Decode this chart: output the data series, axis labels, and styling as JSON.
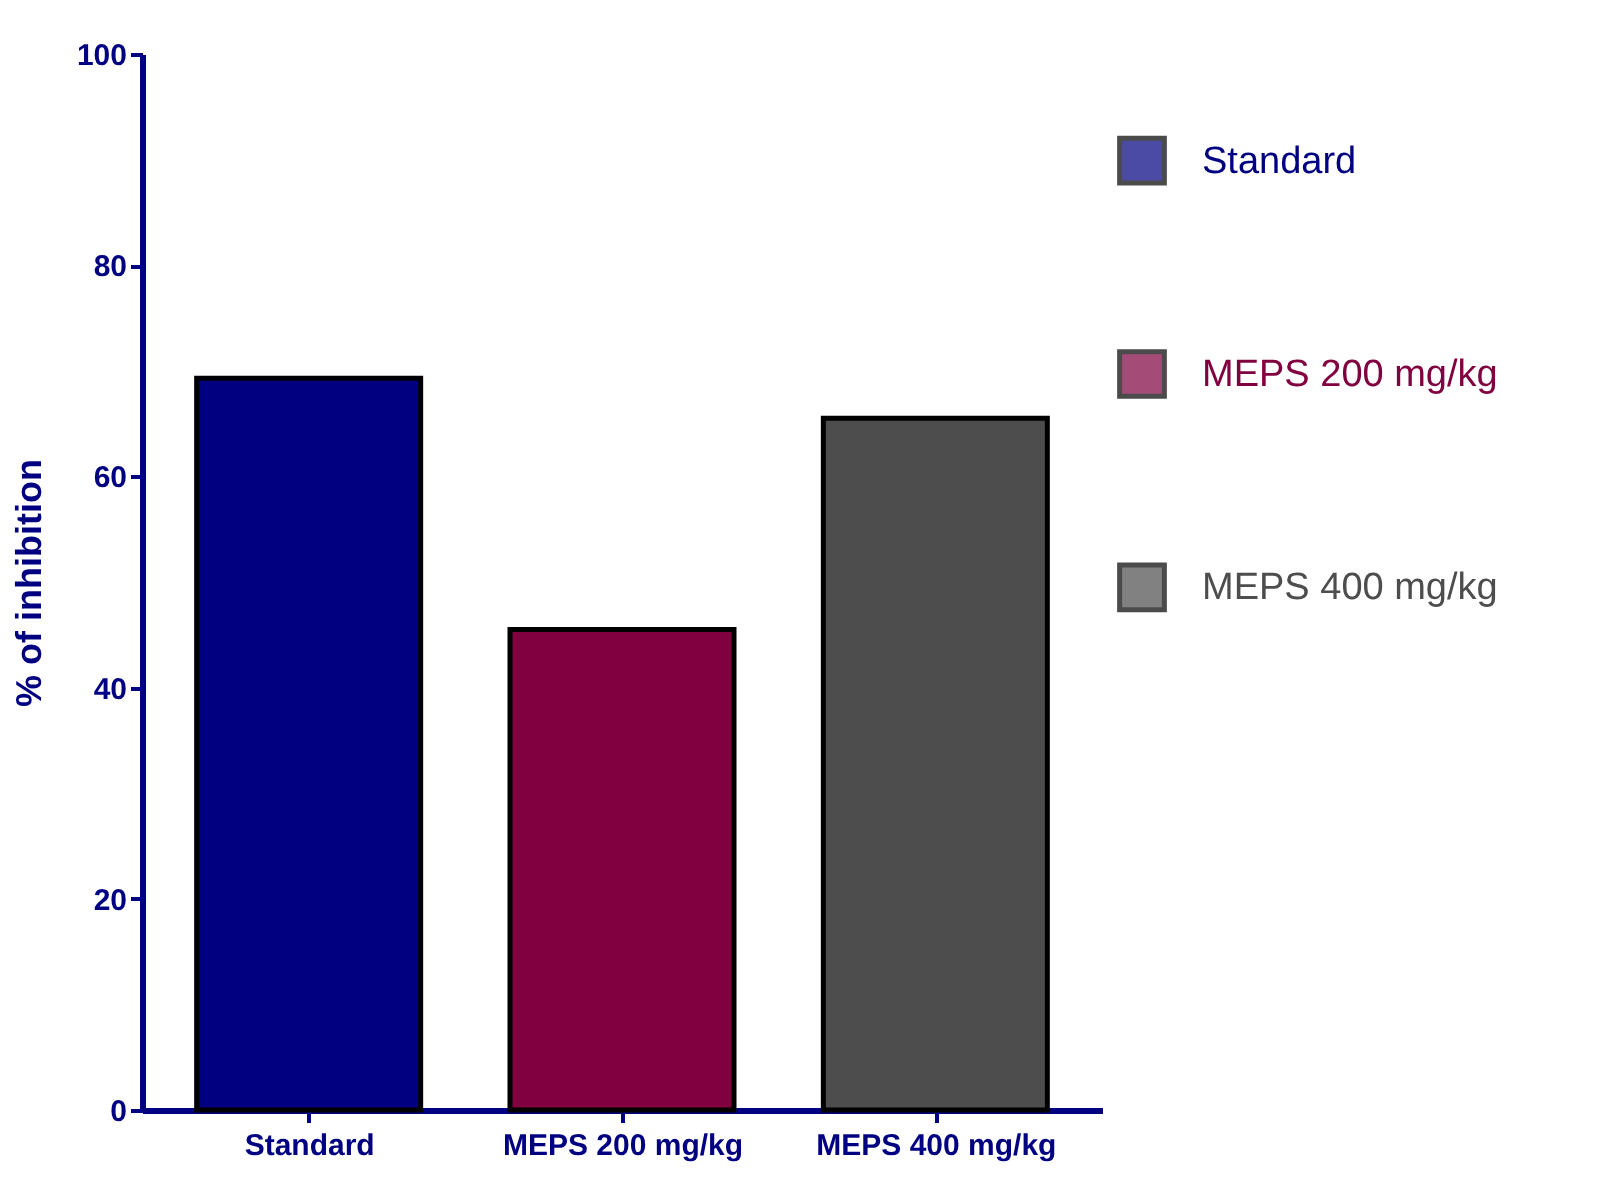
{
  "chart_data": {
    "type": "bar",
    "ylabel": "% of inhibition",
    "categories": [
      "Standard",
      "MEPS 200 mg/kg",
      "MEPS 400 mg/kg"
    ],
    "series": [
      {
        "name": "Standard",
        "color": "#000080",
        "values": [
          69.3,
          null,
          null
        ]
      },
      {
        "name": "MEPS 200 mg/kg",
        "color": "#800040",
        "values": [
          null,
          45.5,
          null
        ]
      },
      {
        "name": "MEPS 400 mg/kg",
        "color": "#4d4d4d",
        "values": [
          null,
          null,
          65.5
        ]
      }
    ],
    "ylim": [
      0,
      100
    ],
    "yticks": [
      0,
      20,
      40,
      60,
      80,
      100
    ],
    "grid": false,
    "legend": "right"
  }
}
